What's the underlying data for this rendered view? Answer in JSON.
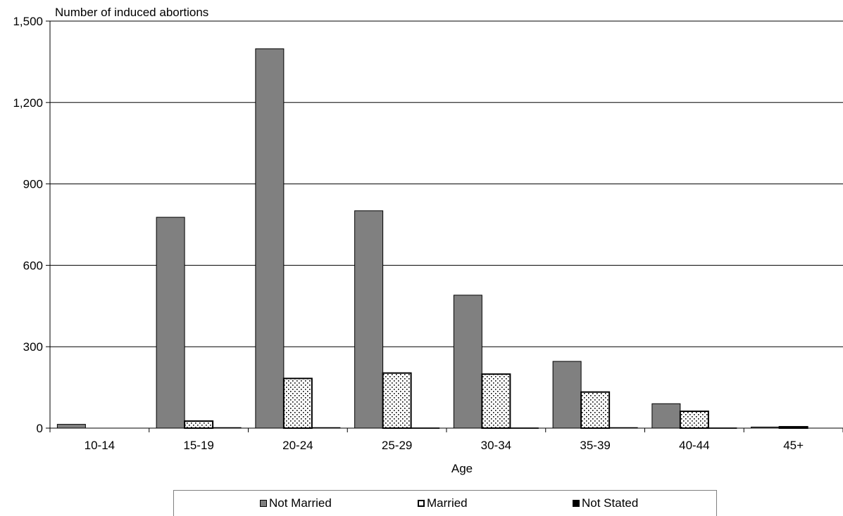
{
  "chart_data": {
    "type": "bar",
    "ylabel": "Number of induced abortions",
    "xlabel": "Age",
    "categories": [
      "10-14",
      "15-19",
      "20-24",
      "25-29",
      "30-34",
      "35-39",
      "40-44",
      "45+"
    ],
    "ylim": [
      0,
      1500
    ],
    "yticks": [
      "0",
      "300",
      "600",
      "900",
      "1,200",
      "1,500"
    ],
    "grid": true,
    "legend_position": "bottom",
    "series": [
      {
        "name": "Not Married",
        "values": [
          14,
          777,
          1398,
          801,
          490,
          246,
          90,
          4
        ],
        "color": "#808080",
        "pattern": "solid"
      },
      {
        "name": "Married",
        "values": [
          0,
          26,
          183,
          203,
          199,
          133,
          62,
          5
        ],
        "color": "#ffffff",
        "pattern": "dots"
      },
      {
        "name": "Not Stated",
        "values": [
          0,
          2,
          2,
          1,
          1,
          2,
          1,
          0
        ],
        "color": "#000000",
        "pattern": "solid"
      }
    ]
  }
}
